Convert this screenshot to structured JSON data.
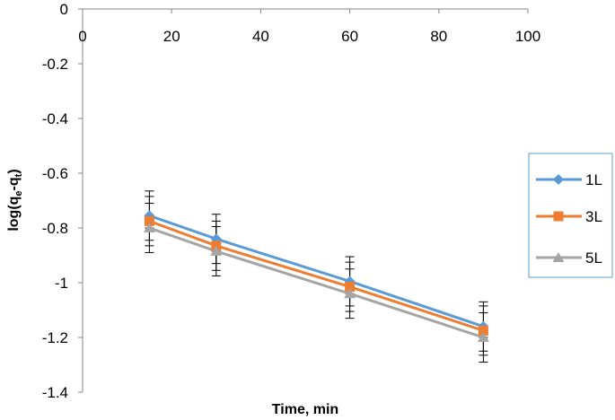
{
  "chart_data": {
    "type": "line",
    "xlabel": "Time, min",
    "ylabel_main": "log(q",
    "ylabel_sub1": "e",
    "ylabel_mid": "-q",
    "ylabel_sub2": "t",
    "ylabel_end": ")",
    "xlim": [
      0,
      100
    ],
    "ylim": [
      -1.4,
      0
    ],
    "x_ticks": [
      "0",
      "20",
      "40",
      "60",
      "80",
      "100"
    ],
    "x_tick_values": [
      0,
      20,
      40,
      60,
      80,
      100
    ],
    "y_ticks": [
      "0",
      "-0.2",
      "-0.4",
      "-0.6",
      "-0.8",
      "-1",
      "-1.2",
      "-1.4"
    ],
    "y_tick_values": [
      0,
      -0.2,
      -0.4,
      -0.6,
      -0.8,
      -1.0,
      -1.2,
      -1.4
    ],
    "x_axis_position": "top",
    "grid": false,
    "legend_position": "right",
    "error_bars": true,
    "series": [
      {
        "name": "1L",
        "color": "#5b9bd5",
        "marker": "diamond",
        "x": [
          15,
          30,
          60,
          90
        ],
        "y": [
          -0.755,
          -0.84,
          -0.995,
          -1.16
        ],
        "err": [
          0.09,
          0.09,
          0.09,
          0.09
        ]
      },
      {
        "name": "3L",
        "color": "#ed7d31",
        "marker": "square",
        "x": [
          15,
          30,
          60,
          90
        ],
        "y": [
          -0.775,
          -0.865,
          -1.015,
          -1.175
        ],
        "err": [
          0.09,
          0.09,
          0.09,
          0.09
        ]
      },
      {
        "name": "5L",
        "color": "#a5a5a5",
        "marker": "triangle",
        "x": [
          15,
          30,
          60,
          90
        ],
        "y": [
          -0.8,
          -0.885,
          -1.04,
          -1.2
        ],
        "err": [
          0.09,
          0.09,
          0.09,
          0.09
        ]
      }
    ]
  }
}
